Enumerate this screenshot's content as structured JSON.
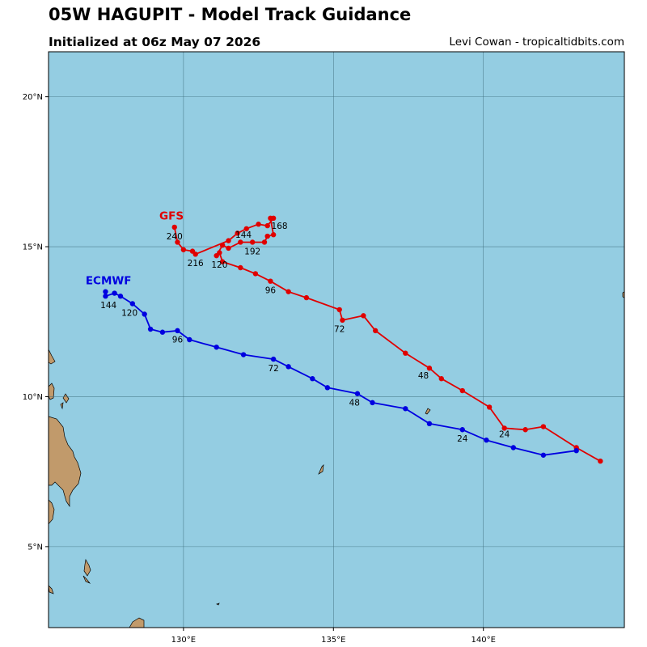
{
  "header": {
    "title": "05W HAGUPIT - Model Track Guidance",
    "subtitle": "Initialized at 06z May 07 2026",
    "credit": "Levi Cowan - tropicaltidbits.com"
  },
  "map": {
    "ocean_color": "#94CDE2",
    "land_color": "#C19A6B",
    "grid_color": "#3f6f7f",
    "lon_range": [
      125.5,
      144.7
    ],
    "lat_range": [
      2.3,
      21.5
    ],
    "lon_ticks": [
      {
        "value": 130,
        "label": "130°E"
      },
      {
        "value": 135,
        "label": "135°E"
      },
      {
        "value": 140,
        "label": "140°E"
      }
    ],
    "lat_ticks": [
      {
        "value": 5,
        "label": "5°N"
      },
      {
        "value": 10,
        "label": "10°N"
      },
      {
        "value": 15,
        "label": "15°N"
      },
      {
        "value": 20,
        "label": "20°N"
      }
    ]
  },
  "chart_data": {
    "type": "scatter",
    "models": [
      {
        "name": "GFS",
        "color": "#e00000",
        "label_at": [
          129.6,
          15.9
        ],
        "track": [
          [
            143.9,
            7.85
          ],
          [
            143.1,
            8.3
          ],
          [
            142.0,
            9.0
          ],
          [
            141.4,
            8.9
          ],
          [
            140.7,
            8.95
          ],
          [
            140.2,
            9.65
          ],
          [
            139.3,
            10.2
          ],
          [
            138.6,
            10.6
          ],
          [
            138.2,
            10.95
          ],
          [
            137.4,
            11.45
          ],
          [
            136.4,
            12.2
          ],
          [
            136.0,
            12.7
          ],
          [
            135.3,
            12.55
          ],
          [
            135.2,
            12.9
          ],
          [
            134.1,
            13.3
          ],
          [
            133.5,
            13.5
          ],
          [
            132.9,
            13.85
          ],
          [
            132.4,
            14.1
          ],
          [
            131.9,
            14.3
          ],
          [
            131.3,
            14.5
          ],
          [
            131.2,
            14.8
          ],
          [
            131.1,
            14.7
          ],
          [
            131.3,
            15.05
          ],
          [
            131.5,
            14.95
          ],
          [
            131.9,
            15.15
          ],
          [
            132.3,
            15.15
          ],
          [
            132.7,
            15.15
          ],
          [
            132.8,
            15.35
          ],
          [
            133.0,
            15.4
          ],
          [
            132.9,
            15.95
          ],
          [
            133.0,
            15.95
          ],
          [
            132.8,
            15.7
          ],
          [
            132.5,
            15.75
          ],
          [
            132.1,
            15.6
          ],
          [
            131.8,
            15.45
          ],
          [
            131.5,
            15.2
          ],
          [
            130.4,
            14.75
          ],
          [
            130.3,
            14.85
          ],
          [
            130.0,
            14.9
          ],
          [
            129.8,
            15.15
          ],
          [
            129.7,
            15.65
          ]
        ],
        "hour_labels": [
          {
            "text": "24",
            "at": [
              140.7,
              8.65
            ]
          },
          {
            "text": "48",
            "at": [
              138.0,
              10.6
            ]
          },
          {
            "text": "72",
            "at": [
              135.2,
              12.15
            ]
          },
          {
            "text": "96",
            "at": [
              132.9,
              13.45
            ]
          },
          {
            "text": "120",
            "at": [
              131.2,
              14.3
            ]
          },
          {
            "text": "144",
            "at": [
              132.0,
              15.3
            ]
          },
          {
            "text": "168",
            "at": [
              133.2,
              15.6
            ]
          },
          {
            "text": "192",
            "at": [
              132.3,
              14.75
            ]
          },
          {
            "text": "216",
            "at": [
              130.4,
              14.35
            ]
          },
          {
            "text": "240",
            "at": [
              129.7,
              15.25
            ]
          }
        ]
      },
      {
        "name": "ECMWF",
        "color": "#0000e0",
        "label_at": [
          127.5,
          13.75
        ],
        "track": [
          [
            143.1,
            8.2
          ],
          [
            142.0,
            8.05
          ],
          [
            141.0,
            8.3
          ],
          [
            140.1,
            8.55
          ],
          [
            139.3,
            8.9
          ],
          [
            138.2,
            9.1
          ],
          [
            137.4,
            9.6
          ],
          [
            136.3,
            9.8
          ],
          [
            135.8,
            10.1
          ],
          [
            134.8,
            10.3
          ],
          [
            134.3,
            10.6
          ],
          [
            133.5,
            11.0
          ],
          [
            133.0,
            11.25
          ],
          [
            132.0,
            11.4
          ],
          [
            131.1,
            11.65
          ],
          [
            130.2,
            11.9
          ],
          [
            129.8,
            12.2
          ],
          [
            129.3,
            12.15
          ],
          [
            128.9,
            12.25
          ],
          [
            128.7,
            12.75
          ],
          [
            128.3,
            13.1
          ],
          [
            127.9,
            13.35
          ],
          [
            127.7,
            13.45
          ],
          [
            127.4,
            13.35
          ],
          [
            127.4,
            13.5
          ]
        ],
        "hour_labels": [
          {
            "text": "24",
            "at": [
              139.3,
              8.5
            ]
          },
          {
            "text": "48",
            "at": [
              135.7,
              9.7
            ]
          },
          {
            "text": "72",
            "at": [
              133.0,
              10.85
            ]
          },
          {
            "text": "96",
            "at": [
              129.8,
              11.8
            ]
          },
          {
            "text": "120",
            "at": [
              128.2,
              12.7
            ]
          },
          {
            "text": "144",
            "at": [
              127.5,
              12.95
            ]
          }
        ]
      }
    ]
  }
}
